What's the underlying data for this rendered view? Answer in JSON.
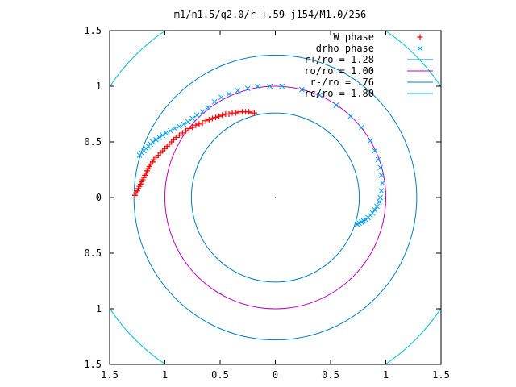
{
  "chart_data": {
    "type": "scatter",
    "title": "m1/n1.5/q2.0/r-+.59-j154/M1.0/256",
    "xlabel": "",
    "ylabel": "",
    "xlim": [
      -1.5,
      1.5
    ],
    "ylim": [
      -1.5,
      1.5
    ],
    "x_ticks": [
      -1.5,
      -1,
      -0.5,
      0,
      0.5,
      1,
      1.5
    ],
    "x_tick_labels": [
      "1.5",
      "1",
      "0.5",
      "0",
      "0.5",
      "1",
      "1.5"
    ],
    "y_ticks": [
      1.5,
      1,
      0.5,
      0,
      -0.5,
      -1,
      -1.5
    ],
    "y_tick_labels": [
      "1.5",
      "1",
      "0.5",
      "0",
      "0.5",
      "1",
      "1.5"
    ],
    "grid": false,
    "legend_position": "top-right",
    "series": [
      {
        "name": "W phase",
        "kind": "points",
        "marker": "+",
        "color": "#ff0000",
        "points": [
          [
            -1.27,
            0.02
          ],
          [
            -1.26,
            0.04
          ],
          [
            -1.25,
            0.06
          ],
          [
            -1.24,
            0.08
          ],
          [
            -1.23,
            0.1
          ],
          [
            -1.22,
            0.12
          ],
          [
            -1.21,
            0.14
          ],
          [
            -1.2,
            0.16
          ],
          [
            -1.19,
            0.18
          ],
          [
            -1.18,
            0.2
          ],
          [
            -1.17,
            0.22
          ],
          [
            -1.16,
            0.24
          ],
          [
            -1.15,
            0.26
          ],
          [
            -1.14,
            0.28
          ],
          [
            -1.13,
            0.3
          ],
          [
            -1.11,
            0.32
          ],
          [
            -1.1,
            0.34
          ],
          [
            -1.08,
            0.36
          ],
          [
            -1.06,
            0.38
          ],
          [
            -1.04,
            0.4
          ],
          [
            -1.02,
            0.42
          ],
          [
            -1.0,
            0.44
          ],
          [
            -0.98,
            0.46
          ],
          [
            -0.96,
            0.48
          ],
          [
            -0.94,
            0.5
          ],
          [
            -0.92,
            0.52
          ],
          [
            -0.9,
            0.54
          ],
          [
            -0.87,
            0.56
          ],
          [
            -0.84,
            0.58
          ],
          [
            -0.81,
            0.6
          ],
          [
            -0.78,
            0.62
          ],
          [
            -0.75,
            0.63
          ],
          [
            -0.72,
            0.65
          ],
          [
            -0.69,
            0.66
          ],
          [
            -0.66,
            0.67
          ],
          [
            -0.63,
            0.69
          ],
          [
            -0.6,
            0.7
          ],
          [
            -0.57,
            0.71
          ],
          [
            -0.54,
            0.72
          ],
          [
            -0.51,
            0.73
          ],
          [
            -0.48,
            0.74
          ],
          [
            -0.45,
            0.75
          ],
          [
            -0.42,
            0.75
          ],
          [
            -0.39,
            0.76
          ],
          [
            -0.36,
            0.76
          ],
          [
            -0.33,
            0.77
          ],
          [
            -0.3,
            0.77
          ],
          [
            -0.27,
            0.77
          ],
          [
            -0.24,
            0.77
          ],
          [
            -0.21,
            0.76
          ],
          [
            -0.19,
            0.76
          ]
        ]
      },
      {
        "name": "drho phase",
        "kind": "points",
        "marker": "x",
        "color": "#00a0ff",
        "points": [
          [
            -1.23,
            0.38
          ],
          [
            -1.21,
            0.4
          ],
          [
            -1.19,
            0.42
          ],
          [
            -1.17,
            0.44
          ],
          [
            -1.15,
            0.46
          ],
          [
            -1.13,
            0.48
          ],
          [
            -1.11,
            0.5
          ],
          [
            -1.08,
            0.52
          ],
          [
            -1.05,
            0.54
          ],
          [
            -1.02,
            0.56
          ],
          [
            -0.99,
            0.58
          ],
          [
            -0.95,
            0.6
          ],
          [
            -0.91,
            0.62
          ],
          [
            -0.87,
            0.64
          ],
          [
            -0.83,
            0.66
          ],
          [
            -0.79,
            0.68
          ],
          [
            -0.75,
            0.71
          ],
          [
            -0.71,
            0.74
          ],
          [
            -0.66,
            0.77
          ],
          [
            -0.61,
            0.81
          ],
          [
            -0.55,
            0.86
          ],
          [
            -0.49,
            0.9
          ],
          [
            -0.42,
            0.93
          ],
          [
            -0.34,
            0.96
          ],
          [
            -0.25,
            0.98
          ],
          [
            -0.16,
            1.0
          ],
          [
            -0.05,
            1.0
          ],
          [
            0.06,
            1.0
          ],
          [
            0.24,
            0.97
          ],
          [
            0.4,
            0.92
          ],
          [
            0.55,
            0.83
          ],
          [
            0.68,
            0.73
          ],
          [
            0.78,
            0.63
          ],
          [
            0.86,
            0.51
          ],
          [
            0.9,
            0.42
          ],
          [
            0.93,
            0.34
          ],
          [
            0.95,
            0.27
          ],
          [
            0.96,
            0.2
          ],
          [
            0.97,
            0.13
          ],
          [
            0.96,
            0.06
          ],
          [
            0.95,
            0.0
          ],
          [
            0.94,
            -0.04
          ],
          [
            0.92,
            -0.08
          ],
          [
            0.9,
            -0.11
          ],
          [
            0.88,
            -0.14
          ],
          [
            0.86,
            -0.16
          ],
          [
            0.84,
            -0.18
          ],
          [
            0.82,
            -0.2
          ],
          [
            0.8,
            -0.21
          ],
          [
            0.78,
            -0.22
          ],
          [
            0.76,
            -0.23
          ],
          [
            0.74,
            -0.24
          ]
        ]
      },
      {
        "name": "r+/ro = 1.28",
        "kind": "circle",
        "radius": 1.28,
        "color": "#0080c0"
      },
      {
        "name": "ro/ro = 1.00",
        "kind": "circle",
        "radius": 1.0,
        "color": "#c000c0"
      },
      {
        "name": "r-/ro = .76",
        "kind": "circle",
        "radius": 0.76,
        "color": "#0080c0"
      },
      {
        "name": "rc/ro = 1.80",
        "kind": "circle",
        "radius": 1.8,
        "color": "#00c0d0"
      }
    ]
  }
}
